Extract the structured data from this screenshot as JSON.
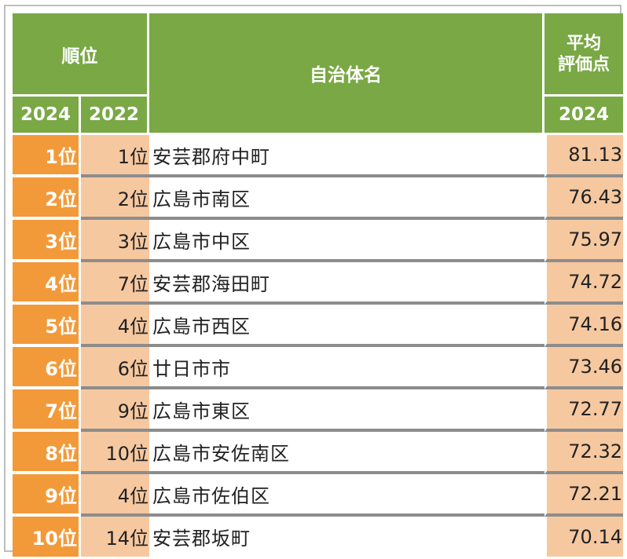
{
  "header": {
    "rank_label": "順位",
    "name_label": "自治体名",
    "score_label_line1": "平均",
    "score_label_line2": "評価点",
    "year_2024": "2024",
    "year_2022": "2022",
    "score_year": "2024"
  },
  "rows": [
    {
      "rank2024": "1位",
      "rank2022": "1位",
      "name": "安芸郡府中町",
      "score": "81.13"
    },
    {
      "rank2024": "2位",
      "rank2022": "2位",
      "name": "広島市南区",
      "score": "76.43"
    },
    {
      "rank2024": "3位",
      "rank2022": "3位",
      "name": "広島市中区",
      "score": "75.97"
    },
    {
      "rank2024": "4位",
      "rank2022": "7位",
      "name": "安芸郡海田町",
      "score": "74.72"
    },
    {
      "rank2024": "5位",
      "rank2022": "4位",
      "name": "広島市西区",
      "score": "74.16"
    },
    {
      "rank2024": "6位",
      "rank2022": "6位",
      "name": "廿日市市",
      "score": "73.46"
    },
    {
      "rank2024": "7位",
      "rank2022": "9位",
      "name": "広島市東区",
      "score": "72.77"
    },
    {
      "rank2024": "8位",
      "rank2022": "10位",
      "name": "広島市安佐南区",
      "score": "72.32"
    },
    {
      "rank2024": "9位",
      "rank2022": "4位",
      "name": "広島市佐伯区",
      "score": "72.21"
    },
    {
      "rank2024": "10位",
      "rank2022": "14位",
      "name": "安芸郡坂町",
      "score": "70.14"
    }
  ],
  "colors": {
    "header_green": "#79a845",
    "rank_orange": "#f29a3a",
    "light_orange": "#f6c8a0"
  }
}
